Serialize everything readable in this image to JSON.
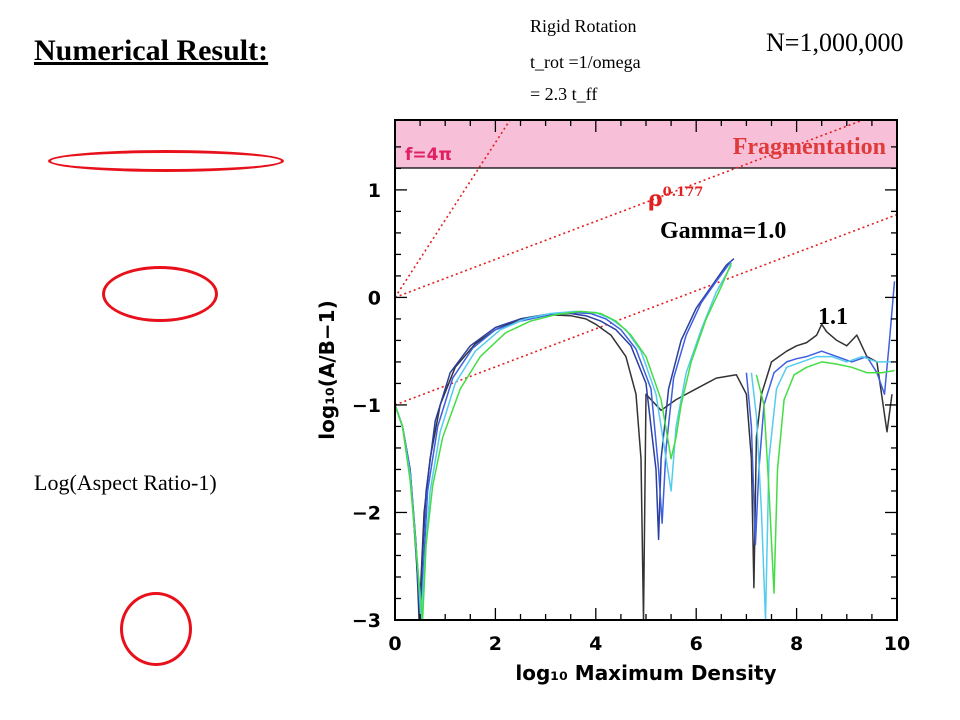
{
  "slide": {
    "title": "Numerical Result:",
    "note_lines": [
      "Rigid Rotation",
      "t_rot =1/omega",
      "= 2.3 t_ff"
    ],
    "particles": "N=1,000,000",
    "y_description": "Log(Aspect Ratio-1)"
  },
  "colors": {
    "ellipse": "#e8101b",
    "fragmentation_band": "#f8c0d8",
    "reference_lines": "#e02020"
  },
  "chart_data": {
    "type": "line",
    "title": "",
    "xlabel": "log₁₀ Maximum Density",
    "ylabel": "log₁₀(A/B−1)",
    "xlim": [
      0,
      10
    ],
    "ylim": [
      -3,
      1.65
    ],
    "xticks": [
      "0",
      "2",
      "4",
      "6",
      "8",
      "10"
    ],
    "yticks": [
      "1",
      "0",
      "−1",
      "−2",
      "−3"
    ],
    "grid": false,
    "annotations": {
      "band_label": "f=4π",
      "band_title": "Fragmentation",
      "rho_label": "ρ",
      "rho_exponent": "0.177",
      "gamma_label": "Gamma=1.0",
      "gamma_11_label": "1.1"
    },
    "fragmentation_threshold": 1.1,
    "reference_lines": [
      {
        "x": [
          0,
          10
        ],
        "y": [
          0,
          1.77
        ]
      },
      {
        "x": [
          0,
          10
        ],
        "y": [
          -1,
          0.77
        ]
      },
      {
        "x": [
          0,
          5
        ],
        "y": [
          0,
          3.6
        ]
      }
    ],
    "series": [
      {
        "color": "#333333",
        "x": [
          0,
          0.15,
          0.3,
          0.42,
          0.48,
          0.52,
          0.58,
          0.7,
          0.9,
          1.2,
          1.6,
          2,
          2.5,
          3,
          3.5,
          3.8,
          4,
          4.3,
          4.6,
          4.8,
          4.9,
          4.95,
          5,
          5.1,
          5.3,
          5.6,
          6,
          6.4,
          6.8,
          7,
          7.1,
          7.15,
          7.2,
          7.3,
          7.5,
          7.8,
          8,
          8.2,
          8.4,
          8.5,
          8.6,
          8.8,
          9,
          9.2,
          9.4,
          9.6,
          9.8,
          9.9
        ],
        "y": [
          -1,
          -1.2,
          -1.6,
          -2.3,
          -3,
          -2.6,
          -2,
          -1.5,
          -1,
          -0.65,
          -0.43,
          -0.3,
          -0.2,
          -0.16,
          -0.17,
          -0.2,
          -0.25,
          -0.35,
          -0.55,
          -0.9,
          -1.5,
          -3,
          -0.9,
          -0.95,
          -1.05,
          -0.95,
          -0.85,
          -0.75,
          -0.72,
          -0.9,
          -1.5,
          -2.7,
          -1.3,
          -0.9,
          -0.6,
          -0.5,
          -0.45,
          -0.42,
          -0.35,
          -0.25,
          -0.32,
          -0.4,
          -0.45,
          -0.35,
          -0.55,
          -0.6,
          -1.25,
          -0.9
        ]
      },
      {
        "color": "#2a3f9f",
        "x": [
          0,
          0.15,
          0.3,
          0.42,
          0.5,
          0.55,
          0.62,
          0.8,
          1.1,
          1.5,
          2,
          2.5,
          3,
          3.5,
          3.8,
          4.1,
          4.4,
          4.7,
          5,
          5.2,
          5.25,
          5.3,
          5.45,
          5.7,
          6,
          6.3,
          6.6,
          6.75
        ],
        "y": [
          -1,
          -1.2,
          -1.6,
          -2.4,
          -3,
          -2.4,
          -1.8,
          -1.15,
          -0.7,
          -0.45,
          -0.28,
          -0.2,
          -0.16,
          -0.15,
          -0.17,
          -0.22,
          -0.3,
          -0.45,
          -0.8,
          -1.6,
          -2.25,
          -1.5,
          -0.85,
          -0.4,
          -0.1,
          0.1,
          0.3,
          0.36
        ]
      },
      {
        "color": "#3d5fe0",
        "x": [
          0,
          0.15,
          0.3,
          0.45,
          0.52,
          0.58,
          0.65,
          0.85,
          1.15,
          1.55,
          2,
          2.5,
          3,
          3.5,
          3.9,
          4.2,
          4.5,
          4.8,
          5.1,
          5.25,
          5.32,
          5.4,
          5.55,
          5.8,
          6.1,
          6.4,
          6.7
        ],
        "y": [
          -1,
          -1.2,
          -1.6,
          -2.5,
          -3,
          -2.4,
          -1.8,
          -1.2,
          -0.75,
          -0.47,
          -0.3,
          -0.22,
          -0.17,
          -0.14,
          -0.15,
          -0.2,
          -0.3,
          -0.48,
          -0.85,
          -1.6,
          -2.1,
          -1.4,
          -0.75,
          -0.35,
          -0.05,
          0.15,
          0.34
        ]
      },
      {
        "color": "#55ccee",
        "x": [
          0,
          0.15,
          0.3,
          0.45,
          0.52,
          0.6,
          0.7,
          0.9,
          1.2,
          1.6,
          2.1,
          2.6,
          3.1,
          3.6,
          4,
          4.3,
          4.6,
          4.9,
          5.2,
          5.4,
          5.5,
          5.6,
          5.8,
          6.1,
          6.4,
          6.7
        ],
        "y": [
          -1,
          -1.2,
          -1.65,
          -2.5,
          -3,
          -2.4,
          -1.8,
          -1.25,
          -0.8,
          -0.5,
          -0.3,
          -0.2,
          -0.15,
          -0.13,
          -0.14,
          -0.2,
          -0.3,
          -0.5,
          -0.9,
          -1.5,
          -1.8,
          -1.2,
          -0.7,
          -0.3,
          0.05,
          0.3
        ]
      },
      {
        "color": "#44dd44",
        "x": [
          0,
          0.15,
          0.3,
          0.45,
          0.55,
          0.62,
          0.75,
          0.95,
          1.3,
          1.7,
          2.2,
          2.7,
          3.2,
          3.7,
          4.1,
          4.4,
          4.7,
          5,
          5.3,
          5.5,
          5.6,
          5.7,
          5.9,
          6.2,
          6.5,
          6.7
        ],
        "y": [
          -1,
          -1.2,
          -1.7,
          -2.5,
          -3,
          -2.3,
          -1.75,
          -1.3,
          -0.85,
          -0.55,
          -0.33,
          -0.22,
          -0.16,
          -0.13,
          -0.15,
          -0.22,
          -0.35,
          -0.55,
          -0.95,
          -1.5,
          -1.3,
          -1.0,
          -0.6,
          -0.2,
          0.1,
          0.32
        ]
      },
      {
        "color": "#3d5fe0",
        "x": [
          7,
          7.1,
          7.18,
          7.25,
          7.35,
          7.55,
          7.8,
          8,
          8.2,
          8.5,
          8.8,
          9.1,
          9.4,
          9.6,
          9.75,
          9.85,
          9.95
        ],
        "y": [
          -0.7,
          -1.2,
          -2.3,
          -1.6,
          -1.0,
          -0.7,
          -0.6,
          -0.57,
          -0.55,
          -0.5,
          -0.55,
          -0.6,
          -0.55,
          -0.7,
          -0.9,
          -0.4,
          0.15
        ]
      },
      {
        "color": "#55ccee",
        "x": [
          7.1,
          7.2,
          7.3,
          7.38,
          7.45,
          7.6,
          7.8,
          8.1,
          8.4,
          8.7,
          9,
          9.3,
          9.6,
          9.9
        ],
        "y": [
          -0.7,
          -1.1,
          -2,
          -3,
          -1.5,
          -0.85,
          -0.65,
          -0.6,
          -0.55,
          -0.55,
          -0.6,
          -0.55,
          -0.6,
          -0.6
        ]
      },
      {
        "color": "#44dd44",
        "x": [
          7.2,
          7.35,
          7.45,
          7.55,
          7.62,
          7.75,
          7.95,
          8.2,
          8.5,
          8.8,
          9.1,
          9.4,
          9.7,
          9.95
        ],
        "y": [
          -0.72,
          -1.0,
          -1.8,
          -2.75,
          -1.6,
          -0.95,
          -0.72,
          -0.65,
          -0.6,
          -0.62,
          -0.65,
          -0.7,
          -0.7,
          -0.68
        ]
      }
    ]
  }
}
